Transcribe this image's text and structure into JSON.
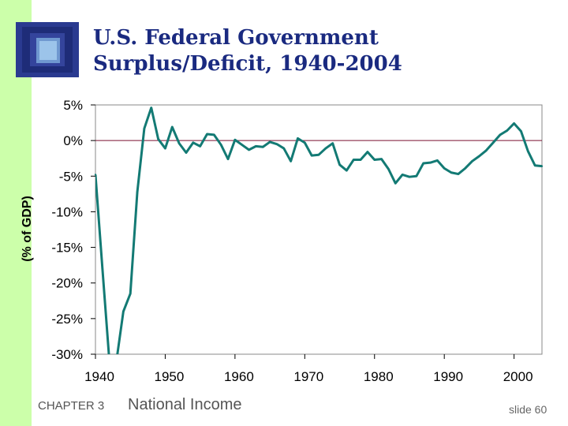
{
  "slide": {
    "title_line1": "U.S. Federal Government",
    "title_line2": "Surplus/Deficit, 1940-2004",
    "footer_chapter": "CHAPTER 3",
    "footer_title": "National Income",
    "slide_number": "slide 60",
    "colors": {
      "strip": "#ccffaa",
      "title": "#1a2a80",
      "line": "#137a74",
      "zero_line": "#7a1030"
    }
  },
  "chart_data": {
    "type": "line",
    "title": "",
    "xlabel": "",
    "ylabel": "(% of GDP)",
    "xlim": [
      1940,
      2004
    ],
    "ylim": [
      -30,
      5
    ],
    "x_ticks": [
      1940,
      1950,
      1960,
      1970,
      1980,
      1990,
      2000
    ],
    "x_tick_labels": [
      "1940",
      "1950",
      "1960",
      "1970",
      "1980",
      "1990",
      "2000"
    ],
    "y_ticks": [
      5,
      0,
      -5,
      -10,
      -15,
      -20,
      -25,
      -30
    ],
    "y_tick_labels": [
      "5%",
      "0%",
      "-5%",
      "-10%",
      "-15%",
      "-20%",
      "-25%",
      "-30%"
    ],
    "reference_line": 0,
    "grid": false,
    "series": [
      {
        "x": [
          1940,
          1941,
          1942,
          1943,
          1944,
          1945,
          1946,
          1947,
          1948,
          1949,
          1950,
          1951,
          1952,
          1953,
          1954,
          1955,
          1956,
          1957,
          1958,
          1959,
          1960,
          1961,
          1962,
          1963,
          1964,
          1965,
          1966,
          1967,
          1968,
          1969,
          1970,
          1971,
          1972,
          1973,
          1974,
          1975,
          1976,
          1977,
          1978,
          1979,
          1980,
          1981,
          1982,
          1983,
          1984,
          1985,
          1986,
          1987,
          1988,
          1989,
          1990,
          1991,
          1992,
          1993,
          1994,
          1995,
          1996,
          1997,
          1998,
          1999,
          2000,
          2001,
          2002,
          2003,
          2004
        ],
        "y": [
          -4.8,
          -18,
          -31,
          -31,
          -24,
          -21.5,
          -7.2,
          1.7,
          4.6,
          0.2,
          -1.1,
          1.9,
          -0.4,
          -1.7,
          -0.3,
          -0.8,
          0.9,
          0.8,
          -0.6,
          -2.6,
          0.1,
          -0.6,
          -1.3,
          -0.8,
          -0.9,
          -0.2,
          -0.5,
          -1.1,
          -2.9,
          0.3,
          -0.3,
          -2.1,
          -2.0,
          -1.1,
          -0.4,
          -3.4,
          -4.2,
          -2.7,
          -2.7,
          -1.6,
          -2.7,
          -2.6,
          -4.0,
          -6.0,
          -4.8,
          -5.1,
          -5.0,
          -3.2,
          -3.1,
          -2.8,
          -3.9,
          -4.5,
          -4.7,
          -3.9,
          -2.9,
          -2.2,
          -1.4,
          -0.3,
          0.8,
          1.4,
          2.4,
          1.3,
          -1.5,
          -3.5,
          -3.6
        ]
      }
    ]
  }
}
